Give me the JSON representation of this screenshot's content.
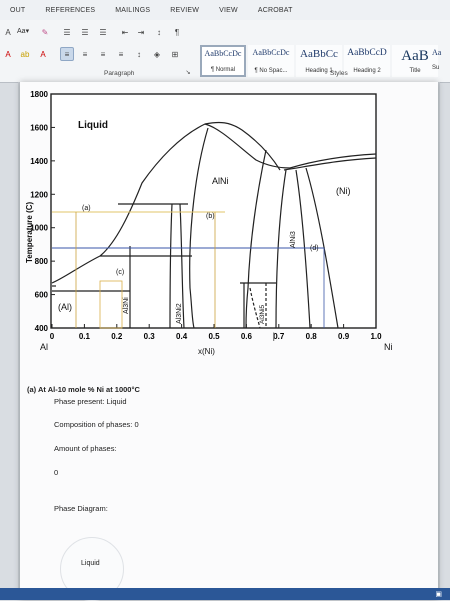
{
  "ribbon": {
    "tabs": [
      "OUT",
      "REFERENCES",
      "MAILINGS",
      "REVIEW",
      "VIEW",
      "ACROBAT"
    ],
    "paragraph_label": "Paragraph",
    "styles_label": "Styles",
    "styles": [
      {
        "sample": "AaBbCcDc",
        "name": "¶ Normal"
      },
      {
        "sample": "AaBbCcDc",
        "name": "¶ No Spac..."
      },
      {
        "sample": "AaBbCc",
        "name": "Heading 1"
      },
      {
        "sample": "AaBbCcD",
        "name": "Heading 2"
      },
      {
        "sample": "AaB",
        "name": "Title"
      },
      {
        "sample": "Aa",
        "name": "Su"
      }
    ],
    "font_size_label": "Aa",
    "icons": [
      "font-color-icon",
      "bullets-icon",
      "numbering-icon",
      "multilevel-icon",
      "decrease-indent-icon",
      "increase-indent-icon",
      "sort-icon",
      "pilcrow-icon",
      "align-left-icon",
      "center-icon",
      "align-right-icon",
      "justify-icon",
      "line-spacing-icon",
      "shading-icon",
      "borders-icon"
    ]
  },
  "figure": {
    "y_axis_label": "Temperature (C)",
    "x_axis_label": "x(Ni)",
    "left_end": "Al",
    "right_end": "Ni",
    "y_ticks": [
      "400",
      "600",
      "800",
      "1000",
      "1200",
      "1400",
      "1600",
      "1800"
    ],
    "x_ticks": [
      "0",
      "0.1",
      "0.2",
      "0.3",
      "0.4",
      "0.5",
      "0.6",
      "0.7",
      "0.8",
      "0.9",
      "1.0"
    ],
    "region_labels": {
      "liquid": "Liquid",
      "alni": "AlNi",
      "ni": "(Ni)",
      "al": "(Al)",
      "al3ni": "Al3Ni",
      "al3ni2": "Al3Ni2",
      "al3ni5": "Al3Ni5",
      "alni3": "AlNi3"
    },
    "markers": {
      "a": "(a)",
      "b": "(b)",
      "c": "(c)",
      "d": "(d)"
    },
    "highlight_colors": {
      "line_1000": "#e2c46a",
      "line_800": "#3a56a8",
      "c_box": "#d9b04a"
    }
  },
  "question": {
    "heading": "(a)  At Al-10 mole % Ni at 1000°C",
    "phase_present": "Phase present: Liquid",
    "composition": "Composition of phases: 0",
    "amount_label": "Amount of phases:",
    "amount_value": "0",
    "phase_diagram_label": "Phase Diagram:",
    "circle_label": "Liquid"
  }
}
